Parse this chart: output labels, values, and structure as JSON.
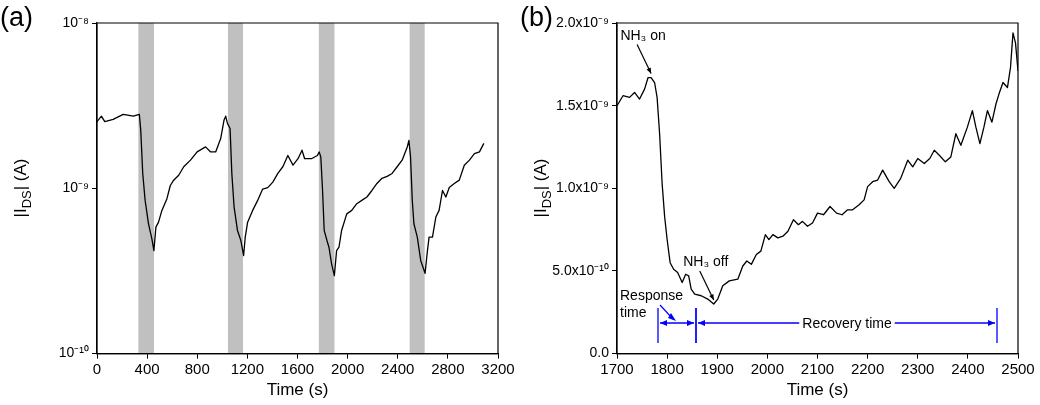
{
  "chart_data": [
    {
      "type": "line",
      "title": "(a)",
      "xlabel": "Time (s)",
      "ylabel": "|I$_{DS}$| (A)",
      "log": true,
      "grid": false,
      "xlim": [
        0,
        3200
      ],
      "xticks": [
        0,
        400,
        800,
        1200,
        1600,
        2000,
        2400,
        2800,
        3200
      ],
      "ylim": [
        1e-10,
        1e-08
      ],
      "yticks": [
        {
          "value": 1e-10,
          "label": "10⁻¹⁰"
        },
        {
          "value": 1e-09,
          "label": "10⁻⁹"
        },
        {
          "value": 1e-08,
          "label": "10⁻⁸"
        }
      ],
      "bands": [
        {
          "axis": "x",
          "from": 330,
          "to": 455,
          "color": "#c0c0c0"
        },
        {
          "axis": "x",
          "from": 1045,
          "to": 1165,
          "color": "#c0c0c0"
        },
        {
          "axis": "x",
          "from": 1770,
          "to": 1895,
          "color": "#c0c0c0"
        },
        {
          "axis": "x",
          "from": 2495,
          "to": 2615,
          "color": "#c0c0c0"
        }
      ],
      "series": [
        {
          "color": "#000000",
          "x": [
            0,
            35,
            62,
            129,
            209,
            290,
            338,
            349,
            365,
            384,
            411,
            438,
            454,
            470,
            491,
            518,
            558,
            585,
            612,
            652,
            692,
            746,
            799,
            866,
            907,
            947,
            987,
            1014,
            1027,
            1041,
            1062,
            1076,
            1094,
            1121,
            1148,
            1170,
            1183,
            1202,
            1242,
            1282,
            1322,
            1363,
            1403,
            1443,
            1483,
            1523,
            1564,
            1604,
            1636,
            1657,
            1711,
            1759,
            1773,
            1786,
            1800,
            1813,
            1835,
            1851,
            1872,
            1894,
            1912,
            1931,
            1952,
            1993,
            2033,
            2073,
            2113,
            2154,
            2194,
            2234,
            2274,
            2315,
            2355,
            2395,
            2435,
            2476,
            2489,
            2502,
            2516,
            2529,
            2556,
            2583,
            2618,
            2637,
            2650,
            2677,
            2704,
            2730,
            2757,
            2784,
            2811,
            2851,
            2891,
            2931,
            2972,
            3012,
            3052,
            3087
          ],
          "values": [
            2.53e-09,
            2.73e-09,
            2.53e-09,
            2.61e-09,
            2.8e-09,
            2.73e-09,
            2.8e-09,
            2.25e-09,
            1.23e-09,
            8.45e-10,
            6.1e-10,
            4.94e-10,
            4.2e-10,
            5.82e-10,
            6.24e-10,
            7.35e-10,
            8.65e-10,
            1.04e-09,
            1.12e-09,
            1.2e-09,
            1.35e-09,
            1.48e-09,
            1.66e-09,
            1.78e-09,
            1.66e-09,
            1.66e-09,
            2e-09,
            2.59e-09,
            2.73e-09,
            2.47e-09,
            2.3e-09,
            1.23e-09,
            7.7e-10,
            5.56e-10,
            4.83e-10,
            3.92e-10,
            5.07e-10,
            6.24e-10,
            7.35e-10,
            8.45e-10,
            9.9e-10,
            1.01e-09,
            1.09e-09,
            1.23e-09,
            1.35e-09,
            1.58e-09,
            1.38e-09,
            1.51e-09,
            1.7e-09,
            1.51e-09,
            1.51e-09,
            1.58e-09,
            1.66e-09,
            1.55e-09,
            9.7e-10,
            5.56e-10,
            4.83e-10,
            4.4e-10,
            3.49e-10,
            2.96e-10,
            4.2e-10,
            4.4e-10,
            5.56e-10,
            7e-10,
            7.35e-10,
            8.07e-10,
            8.45e-10,
            8.86e-10,
            9.7e-10,
            1.07e-09,
            1.15e-09,
            1.18e-09,
            1.23e-09,
            1.35e-09,
            1.48e-09,
            1.78e-09,
            1.95e-09,
            1.55e-09,
            8.45e-10,
            6.1e-10,
            5.07e-10,
            3.66e-10,
            3.06e-10,
            4.2e-10,
            5.07e-10,
            5.07e-10,
            6.7e-10,
            7.35e-10,
            9.7e-10,
            8.86e-10,
            1.01e-09,
            1.07e-09,
            1.12e-09,
            1.38e-09,
            1.48e-09,
            1.62e-09,
            1.66e-09,
            1.87e-09
          ]
        }
      ]
    },
    {
      "type": "line",
      "title": "(b)",
      "xlabel": "Time (s)",
      "ylabel": "|I$_{DS}$| (A)",
      "grid": false,
      "xlim": [
        1700,
        2500
      ],
      "xticks": [
        1700,
        1800,
        1900,
        2000,
        2100,
        2200,
        2300,
        2400,
        2500
      ],
      "ylim": [
        0,
        2e-09
      ],
      "yticks": [
        {
          "value": 0,
          "label": "0.0"
        },
        {
          "value": 5e-10,
          "label": "5.0x10⁻¹⁰"
        },
        {
          "value": 1e-09,
          "label": "1.0x10⁻⁹"
        },
        {
          "value": 1.5e-09,
          "label": "1.5x10⁻⁹"
        },
        {
          "value": 2e-09,
          "label": "2.0x10⁻⁹"
        }
      ],
      "annotations": [
        {
          "text": "NH₃ on",
          "x": 1768,
          "y": 1.67e-09
        },
        {
          "text": "NH₃ off",
          "x": 1893,
          "y": 3e-10
        },
        "Response time",
        "Recovery time"
      ],
      "series": [
        {
          "color": "#000000",
          "x": [
            1700,
            1712,
            1725,
            1735,
            1745,
            1755,
            1762,
            1768,
            1775,
            1780,
            1785,
            1790,
            1795,
            1800,
            1806,
            1813,
            1821,
            1830,
            1837,
            1843,
            1848,
            1855,
            1868,
            1881,
            1893,
            1901,
            1911,
            1924,
            1941,
            1951,
            1959,
            1968,
            1978,
            1987,
            1996,
            2003,
            2011,
            2021,
            2031,
            2041,
            2052,
            2062,
            2070,
            2080,
            2090,
            2100,
            2112,
            2125,
            2138,
            2149,
            2160,
            2170,
            2183,
            2193,
            2200,
            2210,
            2220,
            2230,
            2243,
            2253,
            2266,
            2280,
            2290,
            2300,
            2313,
            2324,
            2333,
            2343,
            2355,
            2366,
            2376,
            2386,
            2399,
            2409,
            2416,
            2424,
            2432,
            2439,
            2448,
            2456,
            2462,
            2470,
            2479,
            2485,
            2490,
            2495,
            2500
          ],
          "values": [
            1.5e-09,
            1.56e-09,
            1.55e-09,
            1.58e-09,
            1.54e-09,
            1.6e-09,
            1.67e-09,
            1.67e-09,
            1.64e-09,
            1.55e-09,
            1.33e-09,
            1.03e-09,
            8.3e-10,
            6.9e-10,
            5.5e-10,
            5.1e-10,
            4.9e-10,
            4.3e-10,
            4.8e-10,
            4.7e-10,
            3.9e-10,
            3.6e-10,
            3.5e-10,
            3.3e-10,
            3e-10,
            3.3e-10,
            4.1e-10,
            4.4e-10,
            4.5e-10,
            5.3e-10,
            5.6e-10,
            5.4e-10,
            6e-10,
            6.2e-10,
            7.2e-10,
            6.9e-10,
            7.2e-10,
            7e-10,
            7.1e-10,
            7.4e-10,
            8.1e-10,
            7.8e-10,
            8e-10,
            7.7e-10,
            7.9e-10,
            8.5e-10,
            8.4e-10,
            8.9e-10,
            8.5e-10,
            8.4e-10,
            8.7e-10,
            8.7e-10,
            9e-10,
            9.3e-10,
            1.01e-09,
            1.04e-09,
            1.05e-09,
            1.11e-09,
            1.04e-09,
            1e-09,
            1.06e-09,
            1.17e-09,
            1.13e-09,
            1.18e-09,
            1.15e-09,
            1.18e-09,
            1.23e-09,
            1.2e-09,
            1.16e-09,
            1.19e-09,
            1.33e-09,
            1.26e-09,
            1.37e-09,
            1.47e-09,
            1.37e-09,
            1.27e-09,
            1.37e-09,
            1.47e-09,
            1.4e-09,
            1.51e-09,
            1.57e-09,
            1.64e-09,
            1.61e-09,
            1.73e-09,
            1.94e-09,
            1.88e-09,
            1.71e-09
          ]
        }
      ]
    }
  ]
}
